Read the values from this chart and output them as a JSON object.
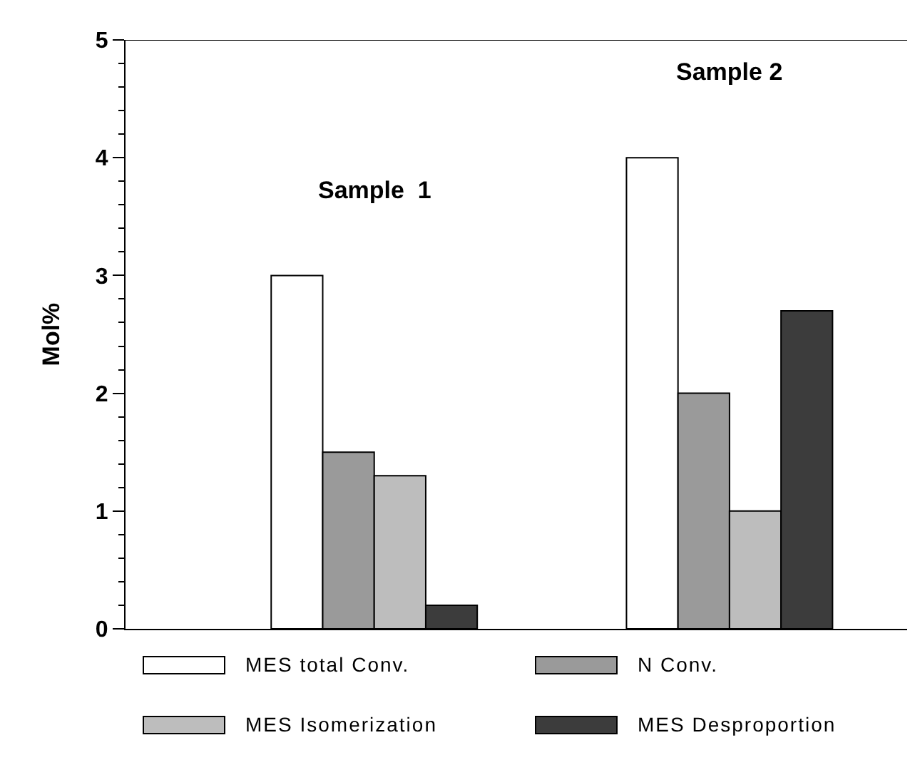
{
  "chart_data": {
    "type": "bar",
    "ylabel": "Mol%",
    "categories": [
      "Sample  1",
      "Sample 2"
    ],
    "series": [
      {
        "name": "MES total Conv.",
        "color": "#ffffff",
        "values": [
          3.0,
          4.0
        ]
      },
      {
        "name": "N Conv.",
        "color": "#9a9a9a",
        "values": [
          1.5,
          2.0
        ]
      },
      {
        "name": "MES Isomerization",
        "color": "#bdbdbd",
        "values": [
          1.3,
          1.0
        ]
      },
      {
        "name": "MES Desproportion",
        "color": "#3c3c3c",
        "values": [
          0.2,
          2.7
        ]
      }
    ],
    "ylim": [
      0,
      5
    ],
    "yticks": [
      0,
      1,
      2,
      3,
      4,
      5
    ],
    "grid": false,
    "legend": "bottom",
    "tick_labels": "y"
  }
}
